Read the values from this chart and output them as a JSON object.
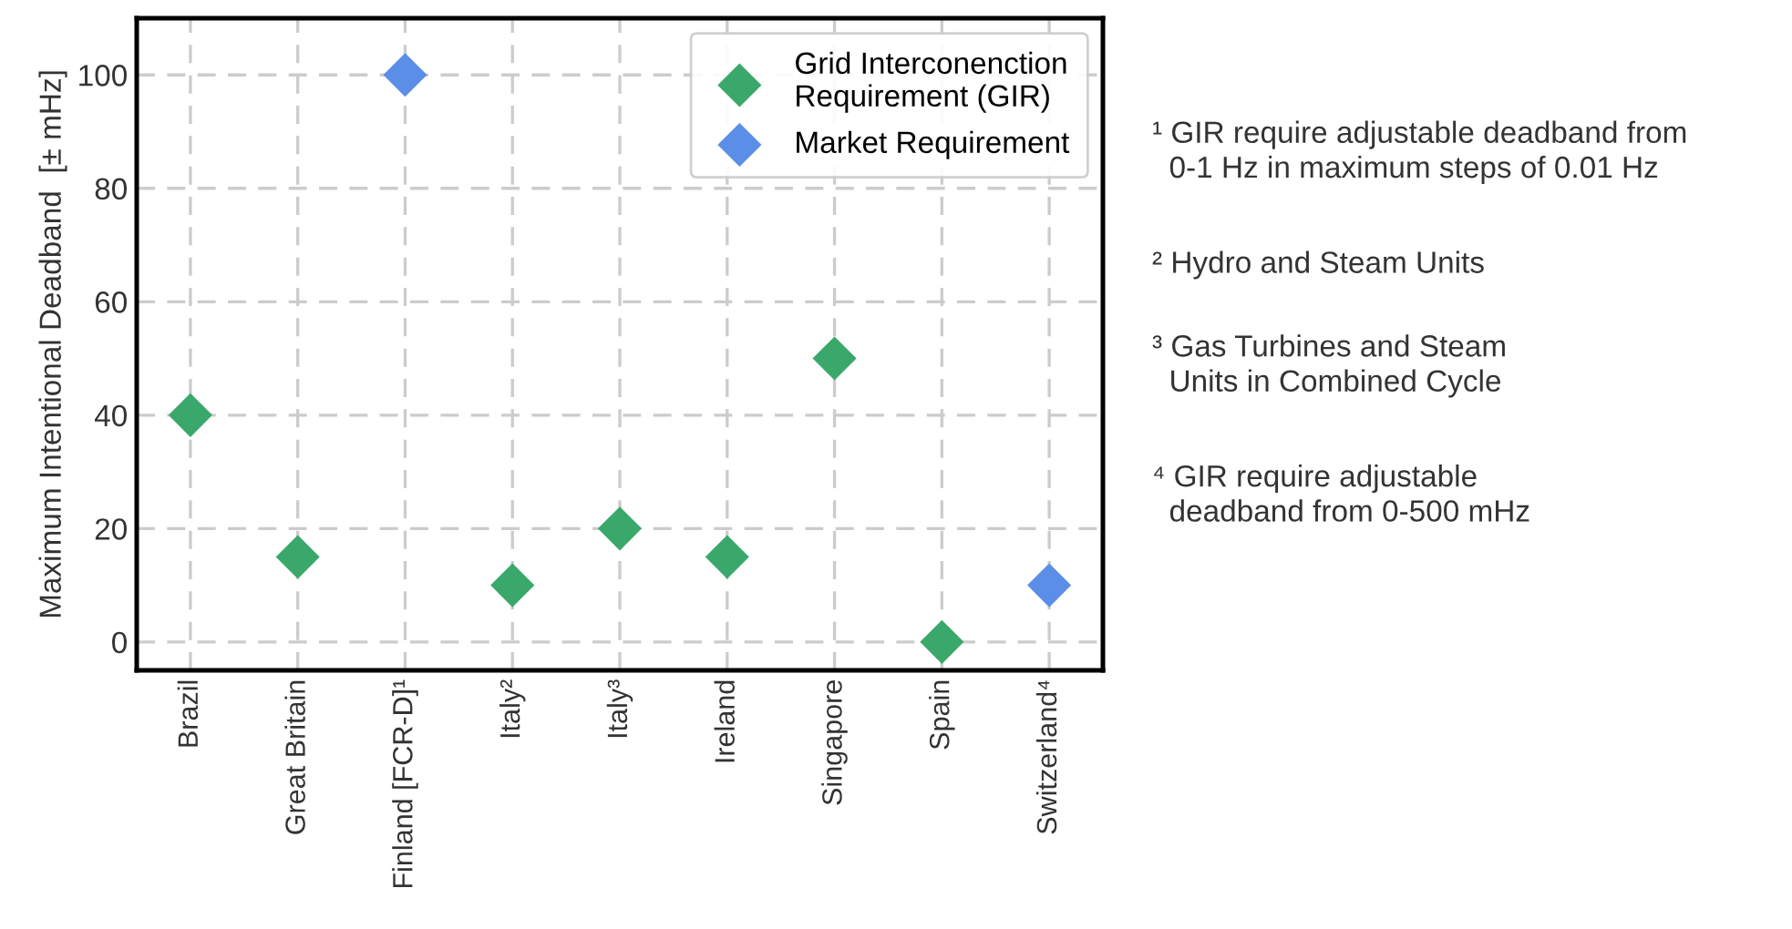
{
  "chart_data": {
    "type": "scatter",
    "ylabel": "Maximum Intentional Deadband  [± mHz]",
    "categories": [
      "Brazil",
      "Great Britain",
      "Finland [FCR-D]¹",
      "Italy²",
      "Italy³",
      "Ireland",
      "Singapore",
      "Spain",
      "Switzerland⁴"
    ],
    "series": [
      {
        "name": "Grid Interconenction\nRequirement (GIR)",
        "color": "#3aa86b",
        "values": [
          40,
          15,
          null,
          10,
          20,
          15,
          50,
          0,
          null
        ]
      },
      {
        "name": "Market Requirement",
        "color": "#5b8ee6",
        "values": [
          null,
          null,
          100,
          null,
          null,
          null,
          null,
          null,
          10
        ]
      }
    ],
    "ylim": [
      -5,
      110
    ],
    "yticks": [
      0,
      20,
      40,
      60,
      80,
      100
    ],
    "grid": true,
    "legend": "top right",
    "marker": "diamond",
    "annotations": [
      "¹ GIR require adjustable deadband from\n  0-1 Hz in maximum steps of 0.01 Hz",
      "² Hydro and Steam Units",
      "³ Gas Turbines and Steam\n  Units in Combined Cycle",
      "⁴ GIR require adjustable\n  deadband from 0-500 mHz"
    ]
  }
}
